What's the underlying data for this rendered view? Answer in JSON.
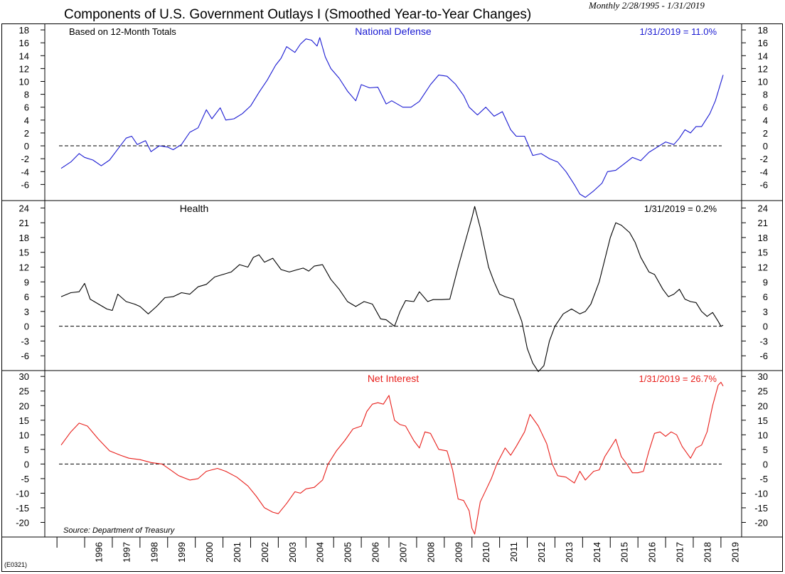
{
  "header": {
    "title": "Components of U.S. Government Outlays I (Smoothed Year-to-Year Changes)",
    "subtitle": "Monthly 2/28/1995 - 1/31/2019"
  },
  "footer": {
    "code": "(E0321)",
    "source": "Source: Department of Treasury"
  },
  "chart_data": {
    "type": "line",
    "x_start": 1995.125,
    "x_end": 2019.08,
    "x_tick_labels": [
      "1996",
      "1997",
      "1998",
      "1999",
      "2000",
      "2001",
      "2002",
      "2003",
      "2004",
      "2005",
      "2006",
      "2007",
      "2008",
      "2009",
      "2010",
      "2011",
      "2012",
      "2013",
      "2014",
      "2015",
      "2016",
      "2017",
      "2018",
      "2019"
    ],
    "panels": [
      {
        "name": "National Defense",
        "color": "#1a1ad2",
        "ylim": [
          -8.5,
          19
        ],
        "yticks": [
          18,
          16,
          14,
          12,
          10,
          8,
          6,
          4,
          2,
          0,
          -2,
          -4,
          -6
        ],
        "note_left": "Based on 12-Month Totals",
        "label": "National Defense",
        "last_value_label": "1/31/2019 = 11.0%",
        "points": [
          [
            1995.15,
            -3.5
          ],
          [
            1995.5,
            -2.5
          ],
          [
            1995.8,
            -1.2
          ],
          [
            1996.0,
            -1.8
          ],
          [
            1996.3,
            -2.2
          ],
          [
            1996.6,
            -3.1
          ],
          [
            1996.9,
            -2.2
          ],
          [
            1997.2,
            -0.5
          ],
          [
            1997.5,
            1.2
          ],
          [
            1997.7,
            1.5
          ],
          [
            1997.9,
            0.2
          ],
          [
            1998.2,
            0.8
          ],
          [
            1998.4,
            -0.9
          ],
          [
            1998.7,
            0.0
          ],
          [
            1999.0,
            -0.2
          ],
          [
            1999.2,
            -0.6
          ],
          [
            1999.5,
            0.2
          ],
          [
            1999.8,
            2.1
          ],
          [
            2000.1,
            2.8
          ],
          [
            2000.4,
            5.6
          ],
          [
            2000.6,
            4.2
          ],
          [
            2000.9,
            5.9
          ],
          [
            2001.1,
            4.0
          ],
          [
            2001.4,
            4.2
          ],
          [
            2001.7,
            5.0
          ],
          [
            2002.0,
            6.2
          ],
          [
            2002.3,
            8.3
          ],
          [
            2002.6,
            10.2
          ],
          [
            2002.9,
            12.5
          ],
          [
            2003.1,
            13.6
          ],
          [
            2003.3,
            15.4
          ],
          [
            2003.6,
            14.5
          ],
          [
            2003.8,
            15.8
          ],
          [
            2004.0,
            16.6
          ],
          [
            2004.2,
            16.4
          ],
          [
            2004.4,
            15.5
          ],
          [
            2004.5,
            16.8
          ],
          [
            2004.7,
            13.8
          ],
          [
            2004.9,
            12.0
          ],
          [
            2005.2,
            10.5
          ],
          [
            2005.5,
            8.5
          ],
          [
            2005.8,
            7.0
          ],
          [
            2006.0,
            9.5
          ],
          [
            2006.3,
            9.0
          ],
          [
            2006.6,
            9.1
          ],
          [
            2006.9,
            6.5
          ],
          [
            2007.1,
            7.0
          ],
          [
            2007.5,
            6.0
          ],
          [
            2007.8,
            6.0
          ],
          [
            2008.1,
            6.9
          ],
          [
            2008.5,
            9.5
          ],
          [
            2008.8,
            11.0
          ],
          [
            2009.1,
            10.8
          ],
          [
            2009.4,
            9.6
          ],
          [
            2009.7,
            7.8
          ],
          [
            2009.9,
            6.0
          ],
          [
            2010.2,
            4.8
          ],
          [
            2010.5,
            6.0
          ],
          [
            2010.8,
            4.6
          ],
          [
            2011.1,
            5.3
          ],
          [
            2011.4,
            2.5
          ],
          [
            2011.6,
            1.5
          ],
          [
            2011.9,
            1.5
          ],
          [
            2012.2,
            -1.5
          ],
          [
            2012.5,
            -1.2
          ],
          [
            2012.8,
            -2.0
          ],
          [
            2013.1,
            -2.5
          ],
          [
            2013.4,
            -4.0
          ],
          [
            2013.7,
            -6.0
          ],
          [
            2013.9,
            -7.5
          ],
          [
            2014.1,
            -8.0
          ],
          [
            2014.4,
            -7.0
          ],
          [
            2014.7,
            -5.8
          ],
          [
            2014.9,
            -4.0
          ],
          [
            2015.2,
            -3.8
          ],
          [
            2015.5,
            -2.8
          ],
          [
            2015.8,
            -1.8
          ],
          [
            2016.1,
            -2.3
          ],
          [
            2016.4,
            -1.0
          ],
          [
            2016.7,
            -0.2
          ],
          [
            2017.0,
            0.6
          ],
          [
            2017.3,
            0.2
          ],
          [
            2017.5,
            1.2
          ],
          [
            2017.7,
            2.5
          ],
          [
            2017.9,
            2.0
          ],
          [
            2018.1,
            3.0
          ],
          [
            2018.3,
            3.0
          ],
          [
            2018.6,
            5.0
          ],
          [
            2018.8,
            7.0
          ],
          [
            2019.08,
            11.0
          ]
        ]
      },
      {
        "name": "Health",
        "color": "#000000",
        "ylim": [
          -9,
          25.5
        ],
        "yticks": [
          24,
          21,
          18,
          15,
          12,
          9,
          6,
          3,
          0,
          -3,
          -6
        ],
        "note_left": "",
        "label": "Health",
        "last_value_label": "1/31/2019 = 0.2%",
        "points": [
          [
            1995.15,
            6.0
          ],
          [
            1995.5,
            6.8
          ],
          [
            1995.8,
            7.0
          ],
          [
            1996.0,
            8.7
          ],
          [
            1996.2,
            5.5
          ],
          [
            1996.5,
            4.5
          ],
          [
            1996.8,
            3.5
          ],
          [
            1997.0,
            3.2
          ],
          [
            1997.2,
            6.5
          ],
          [
            1997.5,
            5.0
          ],
          [
            1997.8,
            4.5
          ],
          [
            1998.0,
            4.0
          ],
          [
            1998.3,
            2.5
          ],
          [
            1998.6,
            4.0
          ],
          [
            1998.9,
            5.8
          ],
          [
            1999.2,
            6.0
          ],
          [
            1999.5,
            6.8
          ],
          [
            1999.8,
            6.5
          ],
          [
            2000.1,
            8.0
          ],
          [
            2000.4,
            8.5
          ],
          [
            2000.7,
            10.0
          ],
          [
            2001.0,
            10.5
          ],
          [
            2001.3,
            11.0
          ],
          [
            2001.6,
            12.5
          ],
          [
            2001.9,
            12.0
          ],
          [
            2002.1,
            14.0
          ],
          [
            2002.3,
            14.5
          ],
          [
            2002.5,
            13.0
          ],
          [
            2002.8,
            13.8
          ],
          [
            2003.1,
            11.5
          ],
          [
            2003.4,
            11.0
          ],
          [
            2003.7,
            11.5
          ],
          [
            2003.9,
            11.8
          ],
          [
            2004.1,
            11.2
          ],
          [
            2004.3,
            12.2
          ],
          [
            2004.6,
            12.5
          ],
          [
            2004.9,
            9.5
          ],
          [
            2005.2,
            7.5
          ],
          [
            2005.5,
            5.0
          ],
          [
            2005.8,
            4.0
          ],
          [
            2006.1,
            5.0
          ],
          [
            2006.4,
            4.5
          ],
          [
            2006.7,
            1.5
          ],
          [
            2006.9,
            1.3
          ],
          [
            2007.2,
            0.0
          ],
          [
            2007.4,
            3.0
          ],
          [
            2007.6,
            5.2
          ],
          [
            2007.9,
            5.0
          ],
          [
            2008.1,
            7.0
          ],
          [
            2008.4,
            5.0
          ],
          [
            2008.6,
            5.4
          ],
          [
            2008.9,
            5.4
          ],
          [
            2009.2,
            5.5
          ],
          [
            2009.5,
            12.0
          ],
          [
            2009.8,
            18.0
          ],
          [
            2010.0,
            22.0
          ],
          [
            2010.1,
            24.3
          ],
          [
            2010.3,
            20.0
          ],
          [
            2010.6,
            12.0
          ],
          [
            2010.8,
            9.0
          ],
          [
            2011.0,
            6.5
          ],
          [
            2011.2,
            6.0
          ],
          [
            2011.5,
            5.5
          ],
          [
            2011.8,
            1.0
          ],
          [
            2012.0,
            -4.5
          ],
          [
            2012.2,
            -7.5
          ],
          [
            2012.4,
            -9.2
          ],
          [
            2012.6,
            -8.0
          ],
          [
            2012.8,
            -3.0
          ],
          [
            2013.0,
            0.0
          ],
          [
            2013.3,
            2.5
          ],
          [
            2013.6,
            3.5
          ],
          [
            2013.9,
            2.5
          ],
          [
            2014.1,
            3.0
          ],
          [
            2014.3,
            4.5
          ],
          [
            2014.6,
            9.0
          ],
          [
            2014.8,
            13.5
          ],
          [
            2015.0,
            18.0
          ],
          [
            2015.2,
            21.0
          ],
          [
            2015.4,
            20.5
          ],
          [
            2015.7,
            19.0
          ],
          [
            2015.9,
            17.0
          ],
          [
            2016.1,
            14.0
          ],
          [
            2016.4,
            11.0
          ],
          [
            2016.6,
            10.5
          ],
          [
            2016.9,
            7.5
          ],
          [
            2017.1,
            6.0
          ],
          [
            2017.3,
            6.5
          ],
          [
            2017.5,
            7.5
          ],
          [
            2017.7,
            5.5
          ],
          [
            2017.9,
            5.0
          ],
          [
            2018.1,
            4.8
          ],
          [
            2018.3,
            3.0
          ],
          [
            2018.5,
            2.0
          ],
          [
            2018.7,
            2.8
          ],
          [
            2018.9,
            1.0
          ],
          [
            2019.0,
            0.0
          ],
          [
            2019.08,
            0.2
          ]
        ]
      },
      {
        "name": "Net Interest",
        "color": "#e8201c",
        "ylim": [
          -25,
          32
        ],
        "yticks": [
          30,
          25,
          20,
          15,
          10,
          5,
          0,
          -5,
          -10,
          -15,
          -20
        ],
        "note_left": "",
        "label": "Net Interest",
        "last_value_label": "1/31/2019 = 26.7%",
        "points": [
          [
            1995.15,
            6.5
          ],
          [
            1995.5,
            11.0
          ],
          [
            1995.8,
            14.0
          ],
          [
            1996.1,
            13.0
          ],
          [
            1996.5,
            8.5
          ],
          [
            1996.9,
            4.5
          ],
          [
            1997.3,
            3.0
          ],
          [
            1997.6,
            2.0
          ],
          [
            1998.0,
            1.5
          ],
          [
            1998.4,
            0.5
          ],
          [
            1998.8,
            0.0
          ],
          [
            1999.1,
            -2.0
          ],
          [
            1999.4,
            -4.0
          ],
          [
            1999.8,
            -5.5
          ],
          [
            2000.1,
            -5.0
          ],
          [
            2000.4,
            -2.5
          ],
          [
            2000.8,
            -1.5
          ],
          [
            2001.1,
            -2.5
          ],
          [
            2001.5,
            -4.5
          ],
          [
            2001.9,
            -7.5
          ],
          [
            2002.2,
            -11.0
          ],
          [
            2002.5,
            -15.0
          ],
          [
            2002.8,
            -16.5
          ],
          [
            2003.0,
            -17.0
          ],
          [
            2003.3,
            -13.5
          ],
          [
            2003.6,
            -9.5
          ],
          [
            2003.8,
            -10.0
          ],
          [
            2004.0,
            -8.5
          ],
          [
            2004.3,
            -8.0
          ],
          [
            2004.6,
            -5.5
          ],
          [
            2004.8,
            0.0
          ],
          [
            2005.1,
            4.5
          ],
          [
            2005.4,
            8.0
          ],
          [
            2005.7,
            12.0
          ],
          [
            2006.0,
            13.0
          ],
          [
            2006.2,
            18.0
          ],
          [
            2006.4,
            20.5
          ],
          [
            2006.6,
            21.0
          ],
          [
            2006.8,
            20.5
          ],
          [
            2007.0,
            23.5
          ],
          [
            2007.2,
            15.0
          ],
          [
            2007.4,
            13.5
          ],
          [
            2007.6,
            13.0
          ],
          [
            2007.9,
            8.0
          ],
          [
            2008.1,
            5.5
          ],
          [
            2008.3,
            11.0
          ],
          [
            2008.5,
            10.5
          ],
          [
            2008.8,
            5.0
          ],
          [
            2009.1,
            4.5
          ],
          [
            2009.3,
            -2.0
          ],
          [
            2009.5,
            -12.0
          ],
          [
            2009.7,
            -12.5
          ],
          [
            2009.9,
            -16.0
          ],
          [
            2010.0,
            -22.0
          ],
          [
            2010.1,
            -24.0
          ],
          [
            2010.3,
            -13.0
          ],
          [
            2010.5,
            -9.0
          ],
          [
            2010.7,
            -5.0
          ],
          [
            2010.9,
            0.0
          ],
          [
            2011.2,
            5.5
          ],
          [
            2011.4,
            3.0
          ],
          [
            2011.6,
            6.0
          ],
          [
            2011.9,
            11.0
          ],
          [
            2012.1,
            17.0
          ],
          [
            2012.4,
            13.0
          ],
          [
            2012.7,
            7.0
          ],
          [
            2012.9,
            0.0
          ],
          [
            2013.1,
            -4.0
          ],
          [
            2013.4,
            -4.5
          ],
          [
            2013.7,
            -6.5
          ],
          [
            2013.9,
            -2.5
          ],
          [
            2014.1,
            -5.5
          ],
          [
            2014.4,
            -2.5
          ],
          [
            2014.6,
            -2.0
          ],
          [
            2014.8,
            2.5
          ],
          [
            2015.0,
            5.5
          ],
          [
            2015.2,
            8.5
          ],
          [
            2015.4,
            2.5
          ],
          [
            2015.6,
            0.0
          ],
          [
            2015.8,
            -3.0
          ],
          [
            2016.0,
            -3.0
          ],
          [
            2016.2,
            -2.5
          ],
          [
            2016.4,
            4.5
          ],
          [
            2016.6,
            10.5
          ],
          [
            2016.8,
            11.0
          ],
          [
            2017.0,
            9.5
          ],
          [
            2017.2,
            11.0
          ],
          [
            2017.4,
            10.0
          ],
          [
            2017.6,
            6.0
          ],
          [
            2017.9,
            2.0
          ],
          [
            2018.1,
            5.5
          ],
          [
            2018.3,
            6.5
          ],
          [
            2018.5,
            11.0
          ],
          [
            2018.7,
            20.0
          ],
          [
            2018.9,
            27.0
          ],
          [
            2019.0,
            28.0
          ],
          [
            2019.08,
            26.7
          ]
        ]
      }
    ]
  }
}
